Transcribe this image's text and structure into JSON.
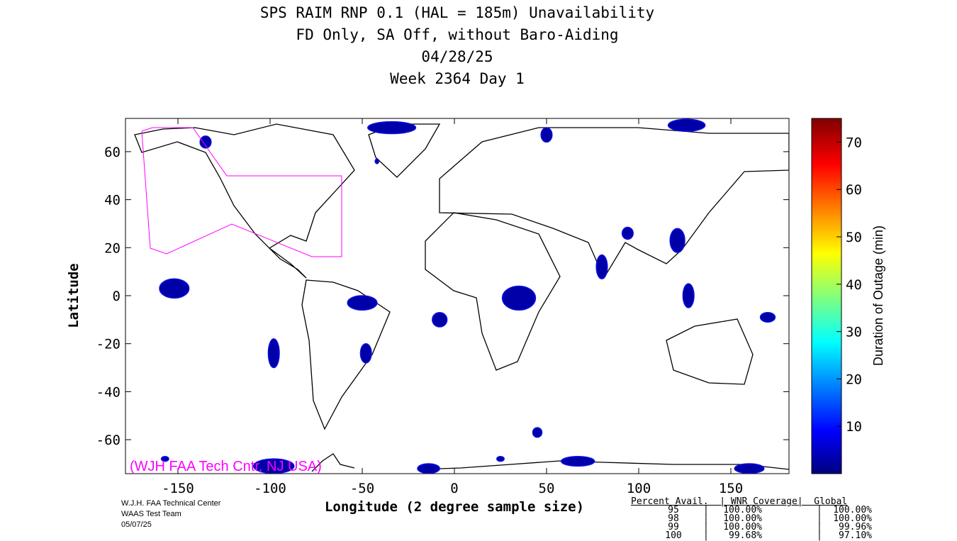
{
  "chart_data": {
    "type": "heatmap",
    "title": [
      "SPS RAIM RNP 0.1 (HAL = 185m) Unavailability",
      "FD Only, SA Off, without Baro-Aiding",
      "04/28/25",
      "Week 2364 Day 1"
    ],
    "xlabel": "Longitude (2 degree sample size)",
    "ylabel": "Latitude",
    "xlim": [
      -180,
      180
    ],
    "ylim": [
      -74,
      74
    ],
    "xticks": [
      -150,
      -100,
      -50,
      0,
      50,
      100,
      150
    ],
    "yticks": [
      -60,
      -40,
      -20,
      0,
      20,
      40,
      60
    ],
    "colorbar": {
      "label": "Duration of Outage (min)",
      "range": [
        0,
        75
      ],
      "ticks": [
        10,
        20,
        30,
        40,
        50,
        60,
        70
      ]
    },
    "outage_regions": [
      {
        "lon": -135,
        "lat": 64,
        "rlon": 3,
        "rlat": 2.5,
        "minutes": 3
      },
      {
        "lon": -34,
        "lat": 70,
        "rlon": 13,
        "rlat": 2.5,
        "minutes": 3
      },
      {
        "lon": -42,
        "lat": 56,
        "rlon": 1,
        "rlat": 1,
        "minutes": 3
      },
      {
        "lon": -152,
        "lat": 3,
        "rlon": 8,
        "rlat": 4,
        "minutes": 4
      },
      {
        "lon": -98,
        "lat": -24,
        "rlon": 3,
        "rlat": 6,
        "minutes": 4
      },
      {
        "lon": -50,
        "lat": -3,
        "rlon": 8,
        "rlat": 3,
        "minutes": 4
      },
      {
        "lon": -48,
        "lat": -24,
        "rlon": 3,
        "rlat": 4,
        "minutes": 4
      },
      {
        "lon": -8,
        "lat": -10,
        "rlon": 4,
        "rlat": 3,
        "minutes": 3
      },
      {
        "lon": 35,
        "lat": -1,
        "rlon": 9,
        "rlat": 5,
        "minutes": 4
      },
      {
        "lon": 80,
        "lat": 12,
        "rlon": 3,
        "rlat": 5,
        "minutes": 4
      },
      {
        "lon": 94,
        "lat": 26,
        "rlon": 3,
        "rlat": 2.5,
        "minutes": 3
      },
      {
        "lon": 121,
        "lat": 23,
        "rlon": 4,
        "rlat": 5,
        "minutes": 4
      },
      {
        "lon": 127,
        "lat": 0,
        "rlon": 3,
        "rlat": 5,
        "minutes": 4
      },
      {
        "lon": 170,
        "lat": -9,
        "rlon": 4,
        "rlat": 2,
        "minutes": 3
      },
      {
        "lon": 126,
        "lat": 71,
        "rlon": 10,
        "rlat": 2.5,
        "minutes": 3
      },
      {
        "lon": 50,
        "lat": 67,
        "rlon": 3,
        "rlat": 3,
        "minutes": 3
      },
      {
        "lon": 45,
        "lat": -57,
        "rlon": 2.5,
        "rlat": 2,
        "minutes": 3
      },
      {
        "lon": 67,
        "lat": -69,
        "rlon": 9,
        "rlat": 2,
        "minutes": 3
      },
      {
        "lon": 160,
        "lat": -72,
        "rlon": 8,
        "rlat": 2,
        "minutes": 3
      },
      {
        "lon": -14,
        "lat": -72,
        "rlon": 6,
        "rlat": 2,
        "minutes": 3
      },
      {
        "lon": -157,
        "lat": -68,
        "rlon": 2,
        "rlat": 1,
        "minutes": 3
      },
      {
        "lon": -98,
        "lat": -71,
        "rlon": 11,
        "rlat": 3,
        "minutes": 3
      },
      {
        "lon": 25,
        "lat": -68,
        "rlon": 2,
        "rlat": 1,
        "minutes": 3
      }
    ]
  },
  "watermark": "(WJH FAA Tech Cntr, NJ USA)",
  "footer": [
    "W.J.H. FAA Technical Center",
    "WAAS Test Team",
    "05/07/25"
  ],
  "table": {
    "header": "Percent Avail.  | WNR Coverage|  Global",
    "rows": [
      [
        "95",
        "100.00%",
        "100.00%"
      ],
      [
        "98",
        "100.00%",
        "100.00%"
      ],
      [
        "99",
        "100.00%",
        "99.96%"
      ],
      [
        "100",
        "99.68%",
        "97.10%"
      ]
    ]
  }
}
